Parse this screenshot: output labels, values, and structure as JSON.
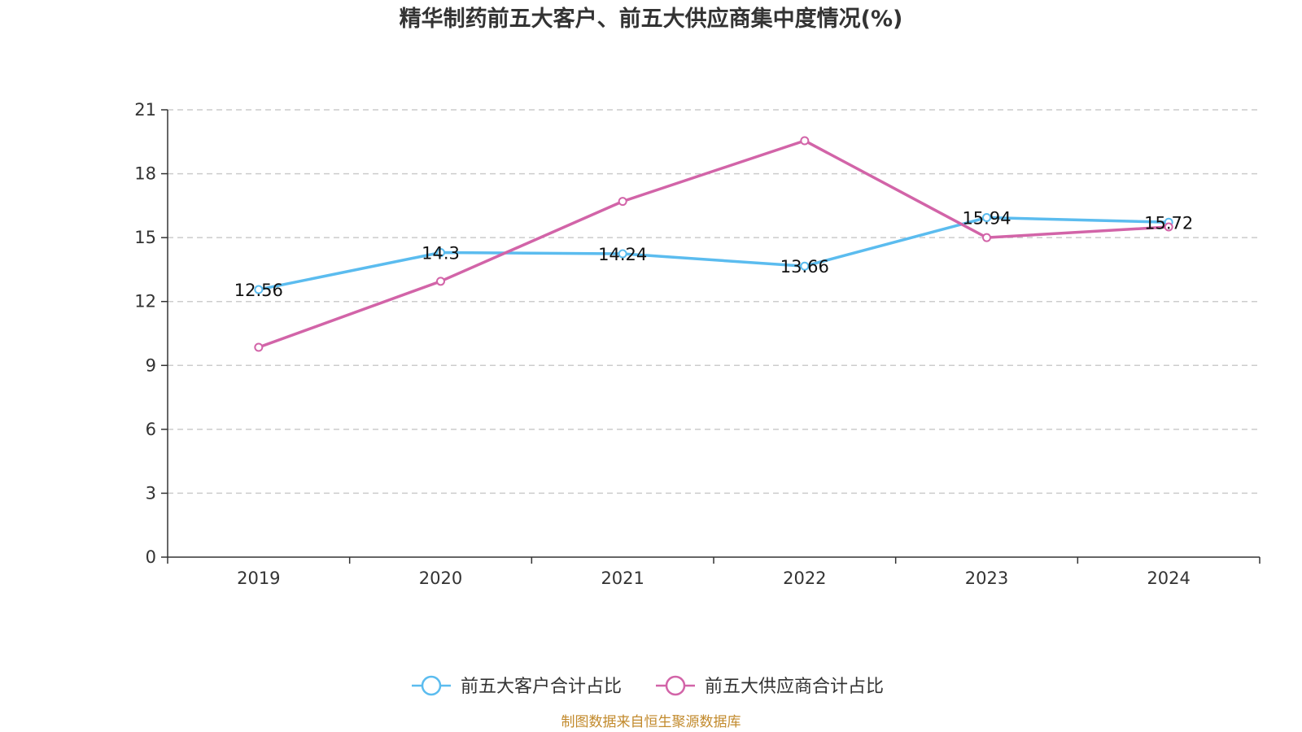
{
  "chart_data": {
    "type": "line",
    "title": "精华制药前五大客户、前五大供应商集中度情况(%)",
    "categories": [
      "2019",
      "2020",
      "2021",
      "2022",
      "2023",
      "2024"
    ],
    "ylim": [
      0,
      21
    ],
    "yticks": [
      0,
      3,
      6,
      9,
      12,
      15,
      18,
      21
    ],
    "grid": true,
    "legend_position": "bottom-center",
    "series": [
      {
        "name": "前五大客户合计占比",
        "color": "#5bbcef",
        "values": [
          12.56,
          14.3,
          14.24,
          13.66,
          15.94,
          15.72
        ],
        "labels": [
          "12.56",
          "14.3",
          "14.24",
          "13.66",
          "15.94",
          "15.72"
        ]
      },
      {
        "name": "前五大供应商合计占比",
        "color": "#d264a8",
        "values": [
          9.85,
          12.95,
          16.7,
          19.55,
          15.0,
          15.5
        ]
      }
    ],
    "source_note": "制图数据来自恒生聚源数据库"
  }
}
